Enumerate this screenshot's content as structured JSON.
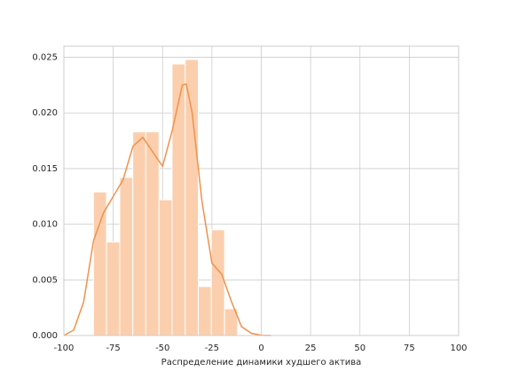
{
  "chart_data": {
    "type": "histogram",
    "x_label": "Распределение динамики худшего актива",
    "bins": [
      -85,
      -78.4,
      -71.7,
      -65.1,
      -58.5,
      -51.8,
      -45.2,
      -38.5,
      -31.9,
      -25.3,
      -18.6,
      -12
    ],
    "values": [
      0.0129,
      0.0084,
      0.0142,
      0.0183,
      0.0183,
      0.0122,
      0.0244,
      0.0248,
      0.0044,
      0.0095,
      0.0024
    ],
    "color": "#fbcfae",
    "kde": {
      "color": "#f0924a",
      "x": [
        -100,
        -95,
        -90,
        -85,
        -80,
        -75,
        -70,
        -65,
        -60,
        -55,
        -50,
        -45,
        -40,
        -38,
        -35,
        -30,
        -25,
        -20,
        -15,
        -10,
        -5,
        0,
        5
      ],
      "values": [
        0,
        0.0005,
        0.003,
        0.0085,
        0.011,
        0.0125,
        0.014,
        0.017,
        0.0178,
        0.0165,
        0.0152,
        0.0185,
        0.0225,
        0.0226,
        0.02,
        0.012,
        0.0065,
        0.0055,
        0.003,
        0.0008,
        0.0002,
        2e-05,
        0
      ]
    },
    "xlim": [
      -100,
      100
    ],
    "xticks": [
      -100,
      -75,
      -50,
      -25,
      0,
      25,
      50,
      75,
      100
    ],
    "ylim": [
      0,
      0.026
    ],
    "yticks": [
      {
        "value": 0,
        "label": "0.000"
      },
      {
        "value": 0.005,
        "label": "0.005"
      },
      {
        "value": 0.01,
        "label": "0.010"
      },
      {
        "value": 0.015,
        "label": "0.015"
      },
      {
        "value": 0.02,
        "label": "0.020"
      },
      {
        "value": 0.025,
        "label": "0.025"
      }
    ],
    "grid": true
  }
}
